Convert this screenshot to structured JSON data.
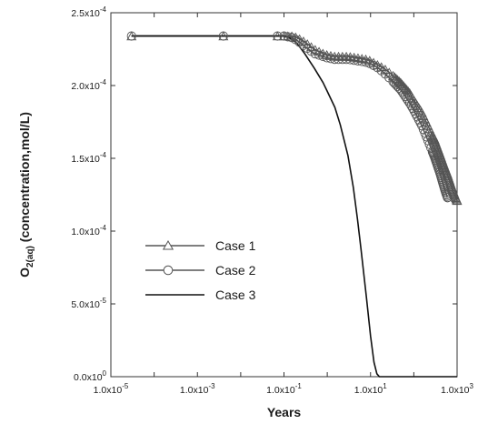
{
  "chart_data": {
    "type": "line",
    "xlabel": "Years",
    "ylabel": "O2(aq) (concentration,mol/L)",
    "ylabel_parts": {
      "base": "O",
      "sub": "2(aq)",
      "rest": " (concentration,mol/L)"
    },
    "xscale": "log",
    "xlim": [
      1e-05,
      1000
    ],
    "ylim": [
      0,
      0.00025
    ],
    "grid": false,
    "legend_position": "center-left",
    "x_ticks": [
      {
        "value": 1e-05,
        "mant": "1.0x10",
        "exp": "-5"
      },
      {
        "value": 0.001,
        "mant": "1.0x10",
        "exp": "-3"
      },
      {
        "value": 0.1,
        "mant": "1.0x10",
        "exp": "-1"
      },
      {
        "value": 10,
        "mant": "1.0x10",
        "exp": "1"
      },
      {
        "value": 1000,
        "mant": "1.0x10",
        "exp": "3"
      }
    ],
    "y_ticks": [
      {
        "value": 0,
        "mant": "0.0x10",
        "exp": "0"
      },
      {
        "value": 5e-05,
        "mant": "5.0x10",
        "exp": "-5"
      },
      {
        "value": 0.0001,
        "mant": "1.0x10",
        "exp": "-4"
      },
      {
        "value": 0.00015,
        "mant": "1.5x10",
        "exp": "-4"
      },
      {
        "value": 0.0002,
        "mant": "2.0x10",
        "exp": "-4"
      },
      {
        "value": 0.00025,
        "mant": "2.5x10",
        "exp": "-4"
      }
    ],
    "series": [
      {
        "name": "Case 1",
        "marker": "triangle",
        "color": "#555555",
        "x": [
          3e-05,
          0.0001,
          0.001,
          0.01,
          0.05,
          0.1,
          0.15,
          0.2,
          0.3,
          0.5,
          0.8,
          1,
          1.5,
          2,
          3,
          5,
          8,
          10,
          15,
          20,
          30,
          50,
          80,
          100,
          150,
          200,
          300,
          400,
          500,
          600,
          700,
          800,
          900,
          1000
        ],
        "y": [
          0.000234,
          0.000234,
          0.000234,
          0.000234,
          0.000234,
          0.000234,
          0.000234,
          0.000233,
          0.00023,
          0.000225,
          0.000222,
          0.000221,
          0.00022,
          0.00022,
          0.00022,
          0.000219,
          0.000218,
          0.000217,
          0.000214,
          0.000212,
          0.000208,
          0.000202,
          0.000195,
          0.00019,
          0.000182,
          0.000174,
          0.000163,
          0.000153,
          0.000145,
          0.000139,
          0.000133,
          0.000128,
          0.000124,
          0.000121
        ]
      },
      {
        "name": "Case 2",
        "marker": "circle",
        "color": "#555555",
        "x": [
          3e-05,
          0.0001,
          0.001,
          0.01,
          0.05,
          0.1,
          0.15,
          0.2,
          0.3,
          0.5,
          0.8,
          1,
          1.5,
          2,
          3,
          5,
          8,
          10,
          15,
          20,
          30,
          50,
          80,
          100,
          150,
          200,
          300,
          400,
          500,
          550,
          600
        ],
        "y": [
          0.000234,
          0.000234,
          0.000234,
          0.000234,
          0.000234,
          0.000234,
          0.000233,
          0.000231,
          0.000227,
          0.000222,
          0.00022,
          0.000219,
          0.000218,
          0.000218,
          0.000218,
          0.000217,
          0.000216,
          0.000215,
          0.000212,
          0.000209,
          0.000204,
          0.000197,
          0.000188,
          0.000183,
          0.000173,
          0.000164,
          0.000151,
          0.00014,
          0.00013,
          0.000126,
          0.000123
        ]
      },
      {
        "name": "Case 3",
        "marker": "none",
        "color": "#111111",
        "x": [
          3e-05,
          0.0001,
          0.001,
          0.01,
          0.05,
          0.1,
          0.15,
          0.2,
          0.3,
          0.5,
          0.8,
          1,
          1.5,
          2,
          3,
          4,
          5,
          6,
          8,
          10,
          12,
          14,
          16,
          18,
          20,
          100,
          1000
        ],
        "y": [
          0.000234,
          0.000234,
          0.000234,
          0.000234,
          0.000234,
          0.000234,
          0.000232,
          0.000229,
          0.000222,
          0.000212,
          0.000202,
          0.000196,
          0.000185,
          0.000173,
          0.000152,
          0.00013,
          0.000108,
          8.8e-05,
          5.5e-05,
          2.8e-05,
          1e-05,
          2e-06,
          0,
          0,
          0,
          0,
          0
        ]
      }
    ]
  }
}
